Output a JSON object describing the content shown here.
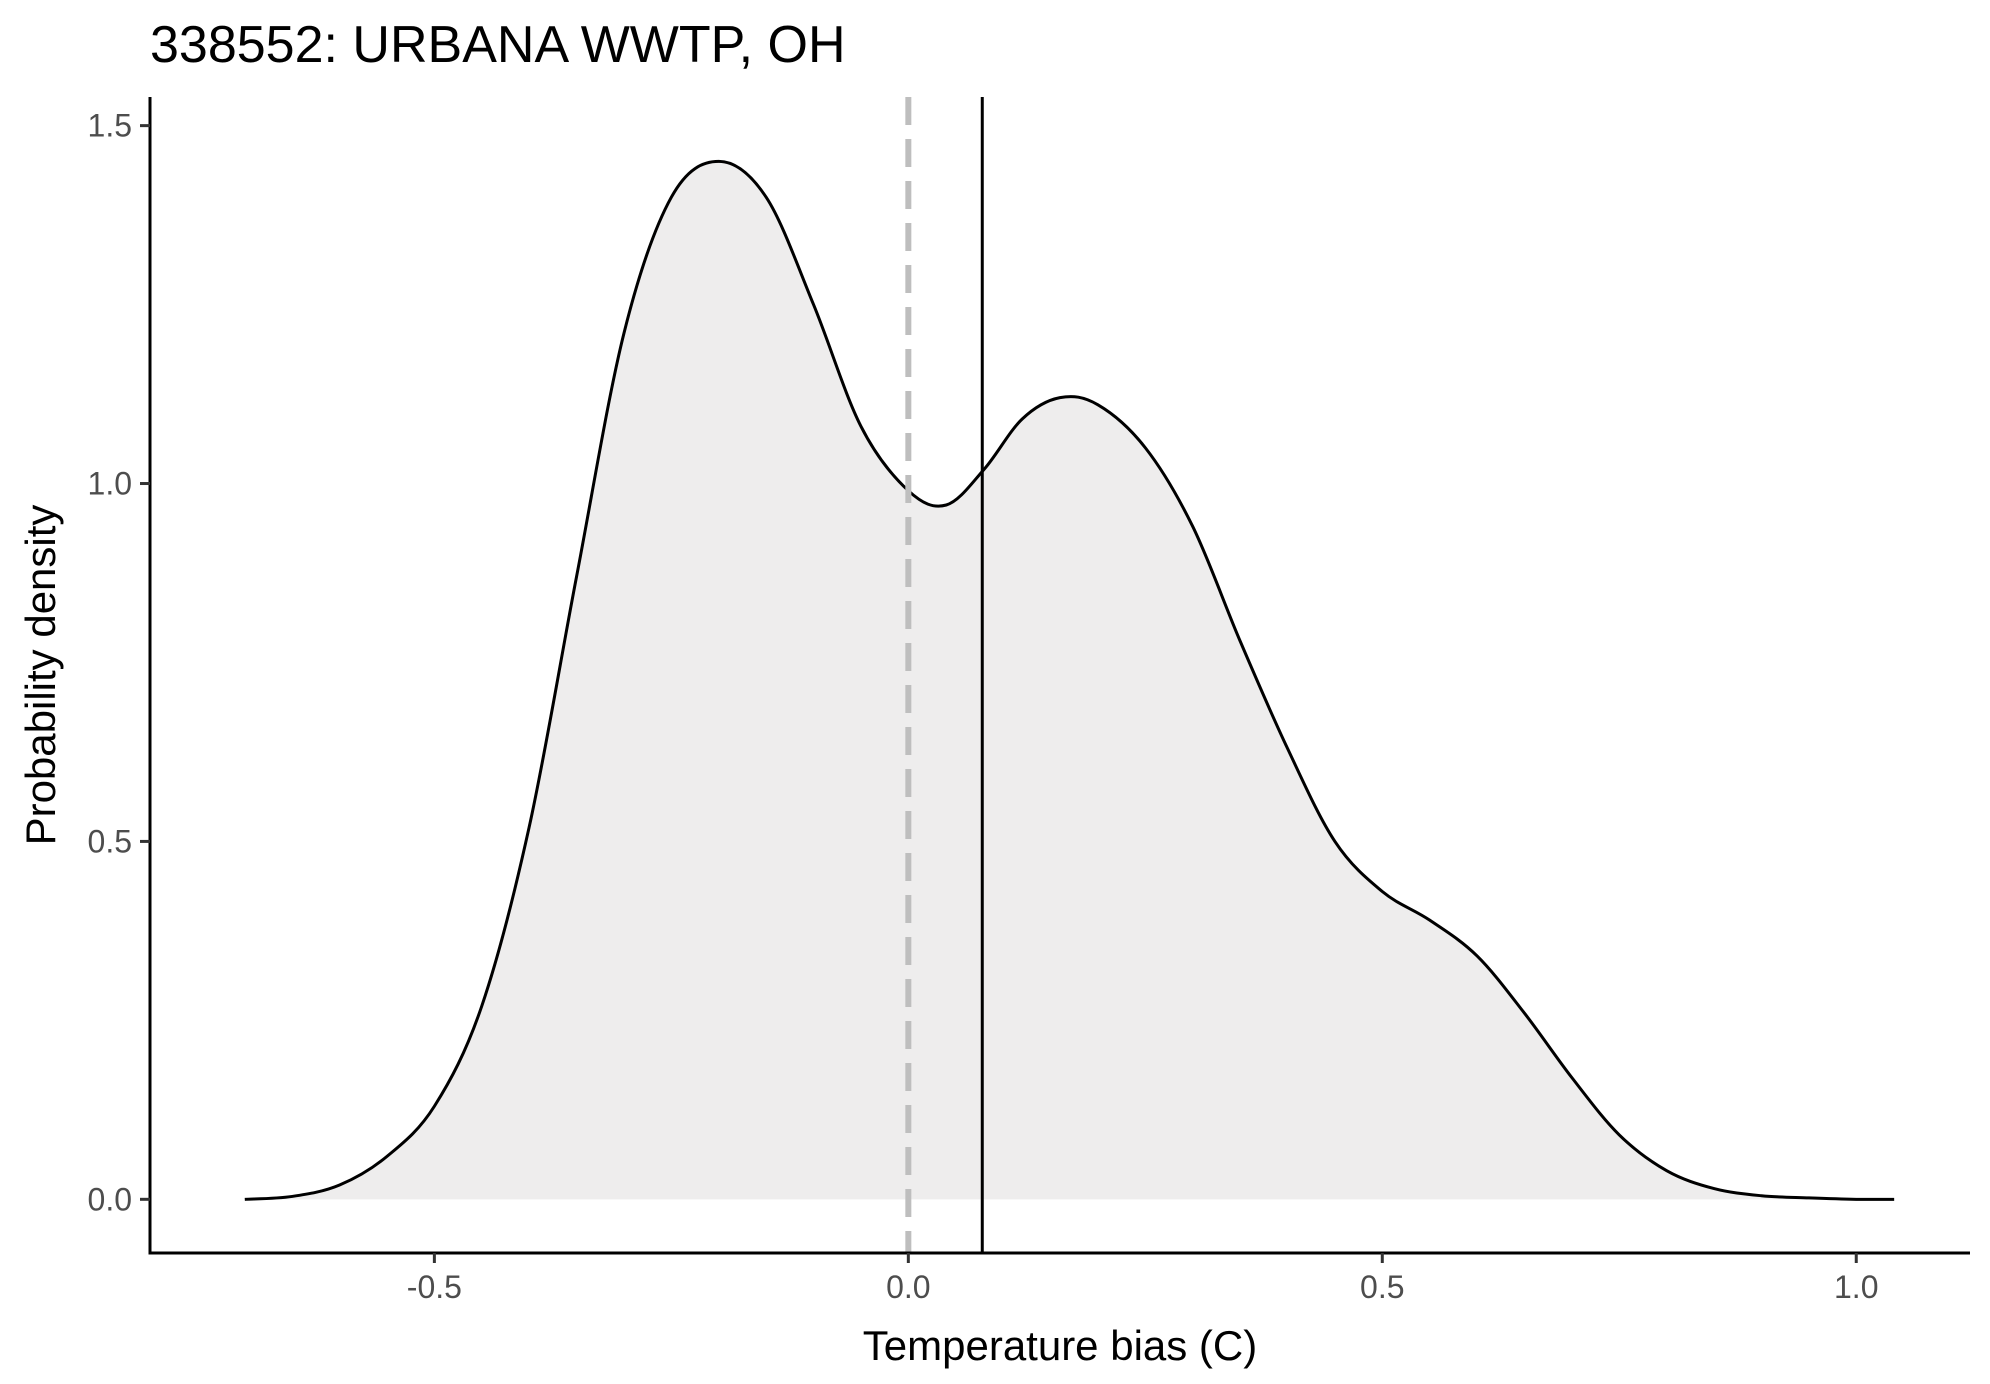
{
  "chart_data": {
    "type": "area",
    "title": "338552: URBANA WWTP, OH",
    "xlabel": "Temperature bias (C)",
    "ylabel": "Probability density",
    "xlim": [
      -0.8,
      1.12
    ],
    "ylim": [
      -0.075,
      1.54
    ],
    "x_ticks": [
      -0.5,
      0.0,
      0.5,
      1.0
    ],
    "x_tick_labels": [
      "-0.5",
      "0.0",
      "0.5",
      "1.0"
    ],
    "y_ticks": [
      0.0,
      0.5,
      1.0,
      1.5
    ],
    "y_tick_labels": [
      "0.0",
      "0.5",
      "1.0",
      "1.5"
    ],
    "grid": false,
    "colors": {
      "fill": "#eeeded",
      "line": "#000000",
      "reference_line": "#bebebe",
      "mean_line": "#000000"
    },
    "series": [
      {
        "x": [
          -0.7,
          -0.65,
          -0.6,
          -0.55,
          -0.5,
          -0.45,
          -0.4,
          -0.35,
          -0.3,
          -0.25,
          -0.2,
          -0.15,
          -0.1,
          -0.05,
          0.0,
          0.04,
          0.08,
          0.12,
          0.16,
          0.2,
          0.25,
          0.3,
          0.35,
          0.4,
          0.45,
          0.5,
          0.55,
          0.6,
          0.65,
          0.7,
          0.75,
          0.8,
          0.85,
          0.9,
          0.95,
          1.0,
          1.04
        ],
        "y": [
          0.0,
          0.004,
          0.02,
          0.06,
          0.13,
          0.27,
          0.52,
          0.87,
          1.21,
          1.4,
          1.45,
          1.4,
          1.25,
          1.08,
          0.99,
          0.97,
          1.02,
          1.09,
          1.12,
          1.11,
          1.05,
          0.94,
          0.78,
          0.63,
          0.5,
          0.43,
          0.39,
          0.34,
          0.26,
          0.17,
          0.09,
          0.04,
          0.015,
          0.005,
          0.002,
          0.0,
          0.0
        ]
      }
    ],
    "reference_line_x": 0.0,
    "mean_line_x": 0.078
  }
}
